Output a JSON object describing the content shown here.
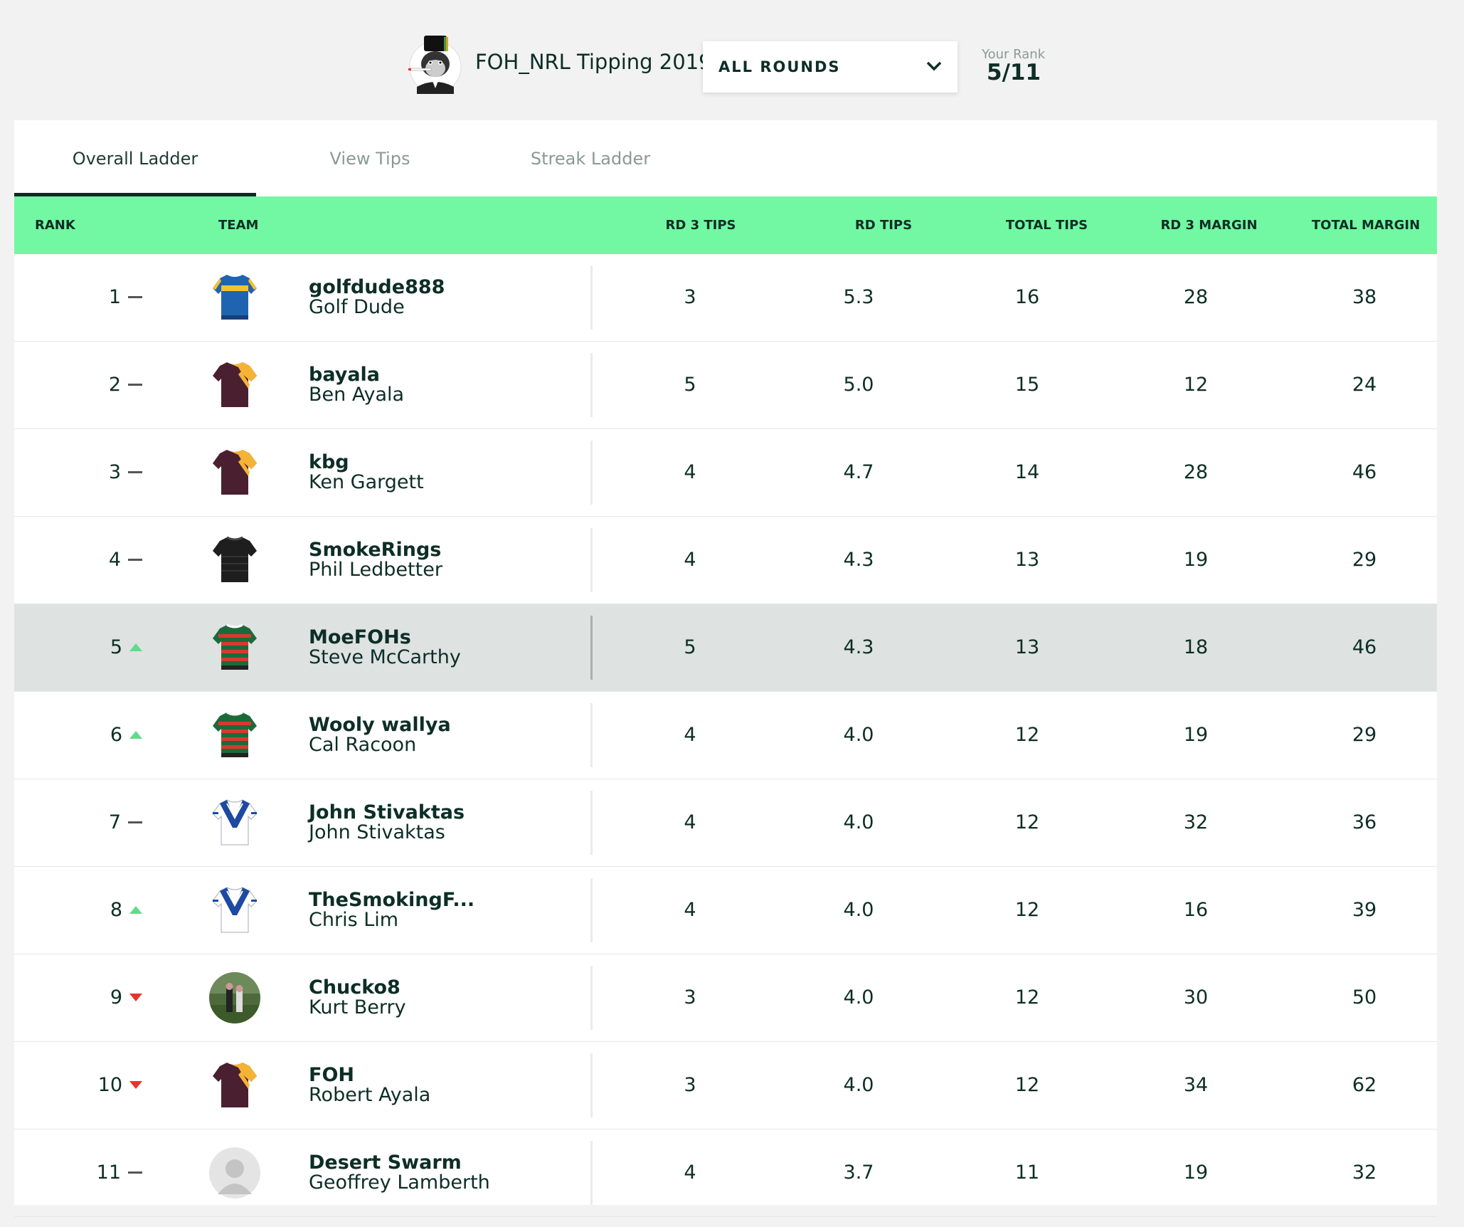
{
  "header": {
    "comp_name": "FOH_NRL Tipping 2019",
    "round_select": "ALL ROUNDS",
    "rank_label": "Your Rank",
    "rank_value": "5/11"
  },
  "tabs": [
    "Overall Ladder",
    "View Tips",
    "Streak Ladder"
  ],
  "active_tab": "Overall Ladder",
  "columns": [
    "RANK",
    "TEAM",
    "RD 3 TIPS",
    "RD TIPS",
    "TOTAL TIPS",
    "RD 3 MARGIN",
    "TOTAL MARGIN"
  ],
  "rows": [
    {
      "rank": "1",
      "move": "same",
      "jersey": "eels",
      "username": "golfdude888",
      "name": "Golf Dude",
      "rd3_tips": "3",
      "rd_tips": "5.3",
      "total_tips": "16",
      "rd3_margin": "28",
      "total_margin": "38"
    },
    {
      "rank": "2",
      "move": "same",
      "jersey": "broncos",
      "username": "bayala",
      "name": "Ben Ayala",
      "rd3_tips": "5",
      "rd_tips": "5.0",
      "total_tips": "15",
      "rd3_margin": "12",
      "total_margin": "24"
    },
    {
      "rank": "3",
      "move": "same",
      "jersey": "broncos",
      "username": "kbg",
      "name": "Ken Gargett",
      "rd3_tips": "4",
      "rd_tips": "4.7",
      "total_tips": "14",
      "rd3_margin": "28",
      "total_margin": "46"
    },
    {
      "rank": "4",
      "move": "same",
      "jersey": "panthers",
      "username": "SmokeRings",
      "name": "Phil Ledbetter",
      "rd3_tips": "4",
      "rd_tips": "4.3",
      "total_tips": "13",
      "rd3_margin": "19",
      "total_margin": "29"
    },
    {
      "rank": "5",
      "move": "up",
      "jersey": "rabbitohs",
      "username": "MoeFOHs",
      "name": "Steve McCarthy",
      "rd3_tips": "5",
      "rd_tips": "4.3",
      "total_tips": "13",
      "rd3_margin": "18",
      "total_margin": "46",
      "highlight": true
    },
    {
      "rank": "6",
      "move": "up",
      "jersey": "rabbitohs",
      "username": "Wooly wallya",
      "name": "Cal Racoon",
      "rd3_tips": "4",
      "rd_tips": "4.0",
      "total_tips": "12",
      "rd3_margin": "19",
      "total_margin": "29"
    },
    {
      "rank": "7",
      "move": "same",
      "jersey": "bulldogs",
      "username": "John Stivaktas",
      "name": "John Stivaktas",
      "rd3_tips": "4",
      "rd_tips": "4.0",
      "total_tips": "12",
      "rd3_margin": "32",
      "total_margin": "36"
    },
    {
      "rank": "8",
      "move": "up",
      "jersey": "bulldogs",
      "username": "TheSmokingF...",
      "name": "Chris Lim",
      "rd3_tips": "4",
      "rd_tips": "4.0",
      "total_tips": "12",
      "rd3_margin": "16",
      "total_margin": "39"
    },
    {
      "rank": "9",
      "move": "down",
      "jersey": "photo",
      "username": "Chucko8",
      "name": "Kurt Berry",
      "rd3_tips": "3",
      "rd_tips": "4.0",
      "total_tips": "12",
      "rd3_margin": "30",
      "total_margin": "50"
    },
    {
      "rank": "10",
      "move": "down",
      "jersey": "broncos",
      "username": "FOH",
      "name": "Robert Ayala",
      "rd3_tips": "3",
      "rd_tips": "4.0",
      "total_tips": "12",
      "rd3_margin": "34",
      "total_margin": "62"
    },
    {
      "rank": "11",
      "move": "same",
      "jersey": "placeholder",
      "username": "Desert Swarm",
      "name": "Geoffrey Lamberth",
      "rd3_tips": "4",
      "rd_tips": "3.7",
      "total_tips": "11",
      "rd3_margin": "19",
      "total_margin": "32"
    }
  ],
  "colors": {
    "accent_green": "#72f8a3",
    "up_arrow": "#5fdc8b",
    "down_arrow": "#e8332a",
    "text_dark": "#0d2e25",
    "highlight_row": "#dee2e1"
  }
}
